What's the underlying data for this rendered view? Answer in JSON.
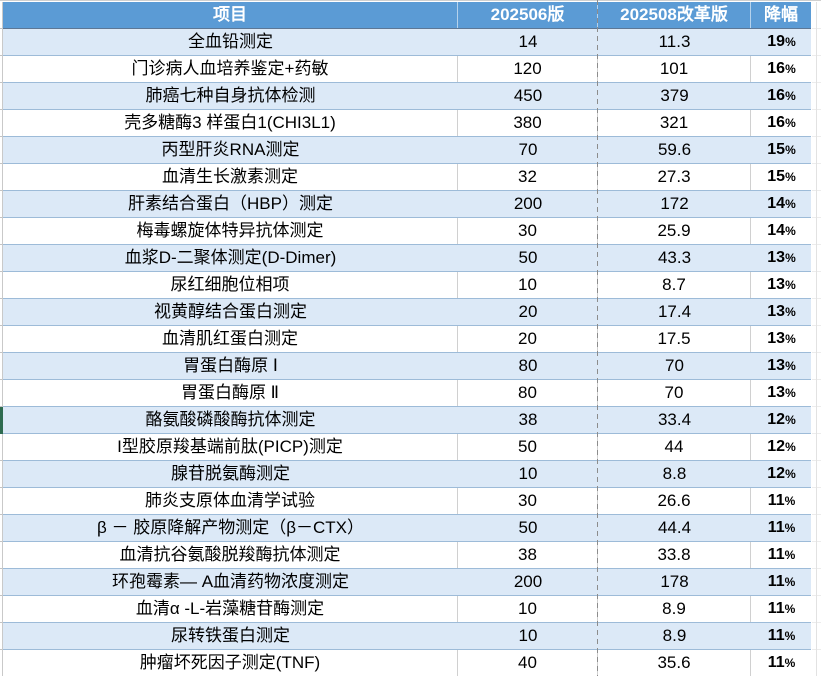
{
  "table": {
    "columns": [
      "项目",
      "202506版",
      "202508改革版",
      "降幅"
    ],
    "percent_sign": "%",
    "rows": [
      {
        "item": "全血铅测定",
        "v1": "14",
        "v2": "11.3",
        "drop": "19"
      },
      {
        "item": "门诊病人血培养鉴定+药敏",
        "v1": "120",
        "v2": "101",
        "drop": "16"
      },
      {
        "item": "肺癌七种自身抗体检测",
        "v1": "450",
        "v2": "379",
        "drop": "16"
      },
      {
        "item": "壳多糖酶3 样蛋白1(CHI3L1)",
        "v1": "380",
        "v2": "321",
        "drop": "16"
      },
      {
        "item": "丙型肝炎RNA测定",
        "v1": "70",
        "v2": "59.6",
        "drop": "15"
      },
      {
        "item": "血清生长激素测定",
        "v1": "32",
        "v2": "27.3",
        "drop": "15"
      },
      {
        "item": "肝素结合蛋白（HBP）测定",
        "v1": "200",
        "v2": "172",
        "drop": "14"
      },
      {
        "item": "梅毒螺旋体特异抗体测定",
        "v1": "30",
        "v2": "25.9",
        "drop": "14"
      },
      {
        "item": "血浆D-二聚体测定(D-Dimer)",
        "v1": "50",
        "v2": "43.3",
        "drop": "13"
      },
      {
        "item": "尿红细胞位相项",
        "v1": "10",
        "v2": "8.7",
        "drop": "13"
      },
      {
        "item": "视黄醇结合蛋白测定",
        "v1": "20",
        "v2": "17.4",
        "drop": "13"
      },
      {
        "item": "血清肌红蛋白测定",
        "v1": "20",
        "v2": "17.5",
        "drop": "13"
      },
      {
        "item": "胃蛋白酶原 Ⅰ",
        "v1": "80",
        "v2": "70",
        "drop": "13"
      },
      {
        "item": "胃蛋白酶原 Ⅱ",
        "v1": "80",
        "v2": "70",
        "drop": "13"
      },
      {
        "item": "酪氨酸磷酸酶抗体测定",
        "v1": "38",
        "v2": "33.4",
        "drop": "12"
      },
      {
        "item": "I型胶原羧基端前肽(PICP)测定",
        "v1": "50",
        "v2": "44",
        "drop": "12"
      },
      {
        "item": "腺苷脱氨酶测定",
        "v1": "10",
        "v2": "8.8",
        "drop": "12"
      },
      {
        "item": "肺炎支原体血清学试验",
        "v1": "30",
        "v2": "26.6",
        "drop": "11"
      },
      {
        "item": "β － 胶原降解产物测定（β－CTX）",
        "v1": "50",
        "v2": "44.4",
        "drop": "11"
      },
      {
        "item": "血清抗谷氨酸脱羧酶抗体测定",
        "v1": "38",
        "v2": "33.8",
        "drop": "11"
      },
      {
        "item": "环孢霉素— A血清药物浓度测定",
        "v1": "200",
        "v2": "178",
        "drop": "11"
      },
      {
        "item": "血清α -L-岩藻糖苷酶测定",
        "v1": "10",
        "v2": "8.9",
        "drop": "11"
      },
      {
        "item": "尿转铁蛋白测定",
        "v1": "10",
        "v2": "8.9",
        "drop": "11"
      },
      {
        "item": "肿瘤坏死因子测定(TNF)",
        "v1": "40",
        "v2": "35.6",
        "drop": "11"
      }
    ]
  },
  "colors": {
    "header_bg": "#5b9bd5",
    "header_text": "#ffffff",
    "band_row_bg": "#dce9f7",
    "row_border": "#9dbbd8",
    "page_break_dash": "#8c8c8c",
    "green_marker": "#2e6b50"
  }
}
